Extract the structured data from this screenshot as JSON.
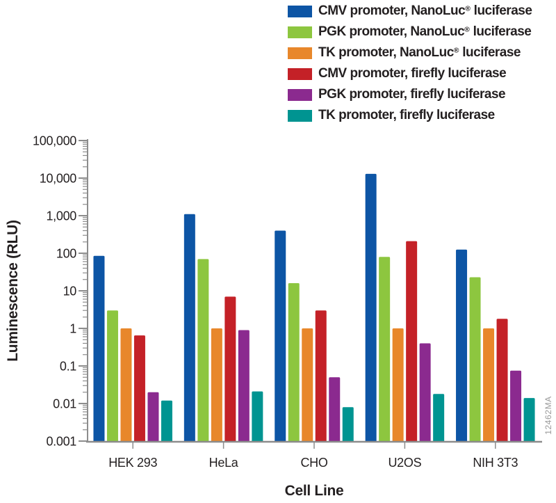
{
  "figure": {
    "y_axis_title": "Luminescence (RLU)",
    "x_axis_title": "Cell Line",
    "watermark": "12462MA"
  },
  "colors": {
    "axis": "#8c8c8c",
    "text": "#231f20",
    "watermark": "#9a9a9a",
    "background": "#ffffff"
  },
  "chart_data": {
    "type": "bar",
    "y_scale": "log",
    "ylim": [
      0.001,
      100000
    ],
    "grid": false,
    "legend_position": "top-right",
    "xlabel": "Cell Line",
    "ylabel": "Luminescence (RLU)",
    "categories": [
      "HEK 293",
      "HeLa",
      "CHO",
      "U2OS",
      "NIH 3T3"
    ],
    "y_ticks": [
      {
        "label": "100,000",
        "value": 100000
      },
      {
        "label": "10,000",
        "value": 10000
      },
      {
        "label": "1,000",
        "value": 1000
      },
      {
        "label": "100",
        "value": 100
      },
      {
        "label": "10",
        "value": 10
      },
      {
        "label": "1",
        "value": 1
      },
      {
        "label": "0.1",
        "value": 0.1
      },
      {
        "label": "0.01",
        "value": 0.01
      },
      {
        "label": "0.001",
        "value": 0.001
      }
    ],
    "series": [
      {
        "name": "CMV promoter, NanoLuc® luciferase",
        "color": "#0d55a5",
        "values": [
          85,
          1100,
          400,
          13000,
          125
        ]
      },
      {
        "name": "PGK promoter, NanoLuc® luciferase",
        "color": "#8dc63f",
        "values": [
          3,
          70,
          16,
          80,
          23
        ]
      },
      {
        "name": "TK promoter, NanoLuc® luciferase",
        "color": "#e8872b",
        "values": [
          1,
          1,
          1,
          1,
          1
        ]
      },
      {
        "name": "CMV promoter, firefly luciferase",
        "color": "#c42127",
        "values": [
          0.65,
          7,
          3,
          210,
          1.8
        ]
      },
      {
        "name": "PGK promoter, firefly luciferase",
        "color": "#8b2a8f",
        "values": [
          0.02,
          0.9,
          0.05,
          0.4,
          0.075
        ]
      },
      {
        "name": "TK promoter, firefly luciferase",
        "color": "#009491",
        "values": [
          0.012,
          0.021,
          0.008,
          0.018,
          0.014
        ]
      }
    ]
  }
}
